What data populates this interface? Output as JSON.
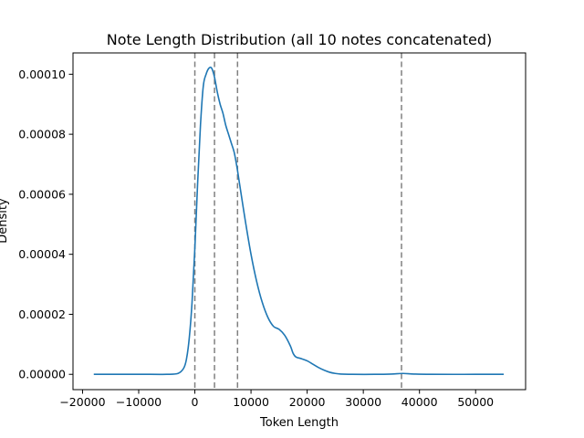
{
  "chart_data": {
    "type": "line",
    "title": "Note Length Distribution (all 10 notes concatenated)",
    "xlabel": "Token Length",
    "ylabel": "Density",
    "xlim": [
      -21700,
      58900
    ],
    "ylim": [
      -5.1e-06,
      0.0001071
    ],
    "x_ticks": [
      -20000,
      -10000,
      0,
      10000,
      20000,
      30000,
      40000,
      50000
    ],
    "x_tick_labels": [
      "−20000",
      "−10000",
      "0",
      "10000",
      "20000",
      "30000",
      "40000",
      "50000"
    ],
    "y_ticks": [
      0,
      2e-05,
      4e-05,
      6e-05,
      8e-05,
      0.0001
    ],
    "y_tick_labels": [
      "0.00000",
      "0.00002",
      "0.00004",
      "0.00006",
      "0.00008",
      "0.00010"
    ],
    "vertical_lines": [
      0,
      3500,
      7600,
      36800
    ],
    "series": [
      {
        "name": "density",
        "color": "#1f77b4",
        "x": [
          -18000,
          -8000,
          -5000,
          -3000,
          -2000,
          -1500,
          -1000,
          -500,
          0,
          500,
          1000,
          1500,
          2000,
          2500,
          3000,
          3500,
          4000,
          4500,
          5000,
          5500,
          6000,
          6500,
          7000,
          7500,
          8000,
          9000,
          10000,
          11000,
          12000,
          13000,
          14000,
          15000,
          16000,
          17000,
          17500,
          18000,
          19000,
          20000,
          21000,
          22000,
          23000,
          24000,
          25000,
          26000,
          28000,
          32000,
          35000,
          37000,
          39000,
          42000,
          50000,
          55000
        ],
        "y": [
          0,
          0,
          0,
          3e-07,
          2e-06,
          5e-06,
          1.2e-05,
          2.4e-05,
          4.2e-05,
          6.4e-05,
          8.3e-05,
          9.6e-05,
          0.0001,
          0.000102,
          0.000102,
          9.9e-05,
          9.4e-05,
          9e-05,
          8.7e-05,
          8.3e-05,
          8e-05,
          7.7e-05,
          7.4e-05,
          6.9e-05,
          6.3e-05,
          5.1e-05,
          4e-05,
          3.1e-05,
          2.4e-05,
          1.9e-05,
          1.6e-05,
          1.5e-05,
          1.3e-05,
          9.5e-06,
          7e-06,
          5.8e-06,
          5.2e-06,
          4.5e-06,
          3.4e-06,
          2.3e-06,
          1.4e-06,
          7e-07,
          3e-07,
          1e-07,
          0,
          0,
          1e-07,
          3e-07,
          1e-07,
          0,
          0,
          0
        ]
      }
    ]
  }
}
